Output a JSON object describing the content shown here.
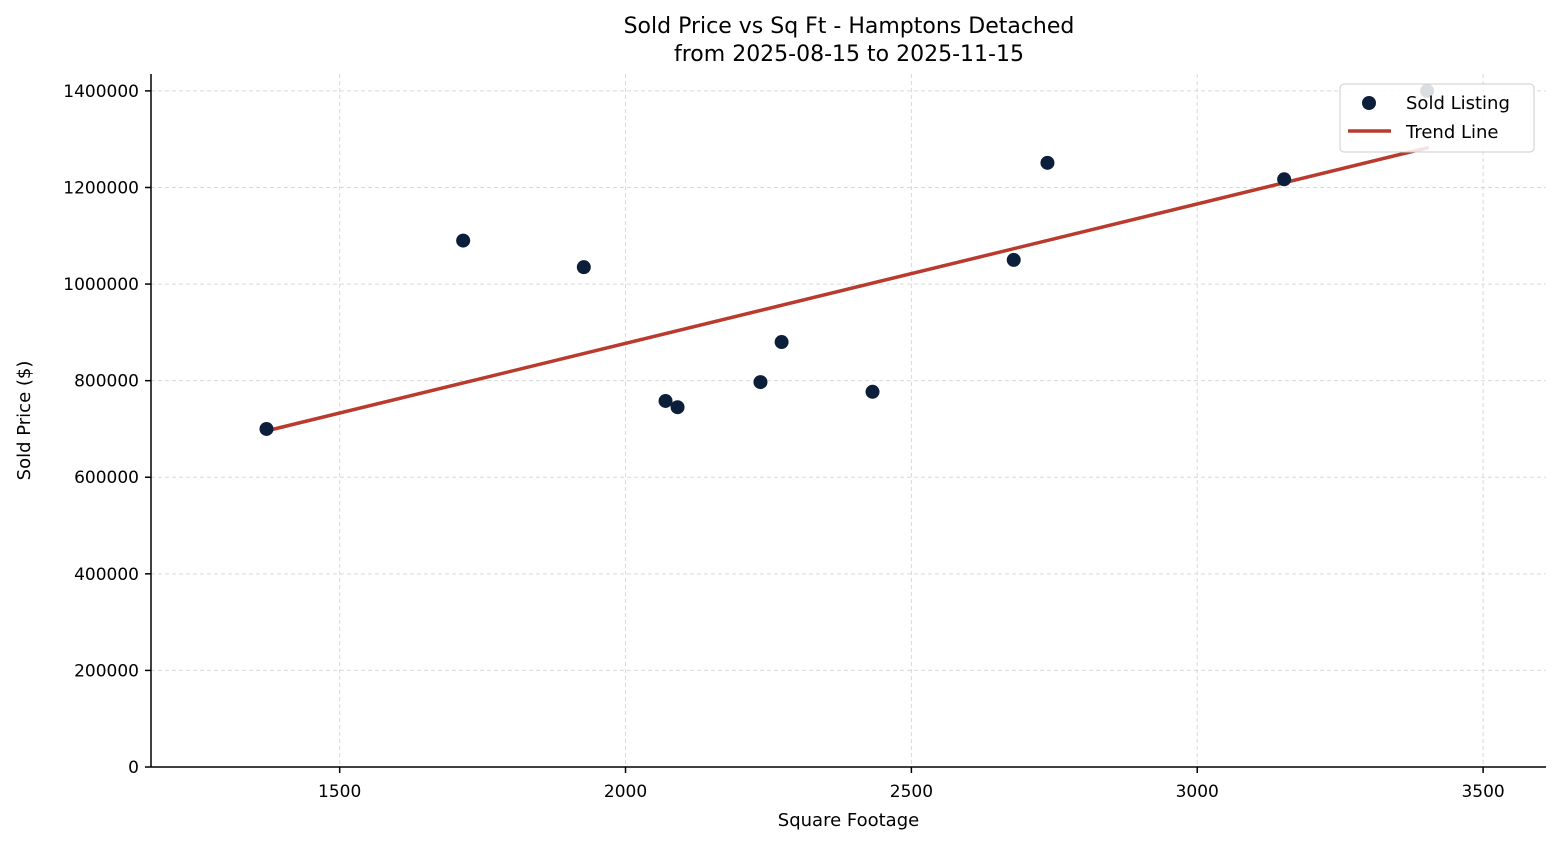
{
  "chart_data": {
    "type": "scatter",
    "title": "Sold Price vs Sq Ft - Hamptons Detached",
    "subtitle": "from 2025-08-15 to 2025-11-15",
    "xlabel": "Square Footage",
    "ylabel": "Sold Price ($)",
    "xlim": [
      1170,
      3610
    ],
    "ylim": [
      0,
      1435000
    ],
    "xticks": [
      1500,
      2000,
      2500,
      3000,
      3500
    ],
    "yticks": [
      0,
      200000,
      400000,
      600000,
      800000,
      1000000,
      1200000,
      1400000
    ],
    "grid": true,
    "legend_position": "top-right",
    "series": [
      {
        "name": "Sold Listing",
        "kind": "scatter",
        "color": "#0b1f3a",
        "points": [
          {
            "x": 1372,
            "y": 700000
          },
          {
            "x": 1716,
            "y": 1090000
          },
          {
            "x": 1927,
            "y": 1035000
          },
          {
            "x": 2070,
            "y": 758000
          },
          {
            "x": 2091,
            "y": 745000
          },
          {
            "x": 2236,
            "y": 797000
          },
          {
            "x": 2273,
            "y": 880000
          },
          {
            "x": 2432,
            "y": 777000
          },
          {
            "x": 2679,
            "y": 1050000
          },
          {
            "x": 2738,
            "y": 1251000
          },
          {
            "x": 3152,
            "y": 1217000
          },
          {
            "x": 3402,
            "y": 1400000
          }
        ]
      },
      {
        "name": "Trend Line",
        "kind": "line",
        "color": "#b83b2e",
        "points": [
          {
            "x": 1372,
            "y": 696000
          },
          {
            "x": 3402,
            "y": 1282000
          }
        ]
      }
    ]
  }
}
